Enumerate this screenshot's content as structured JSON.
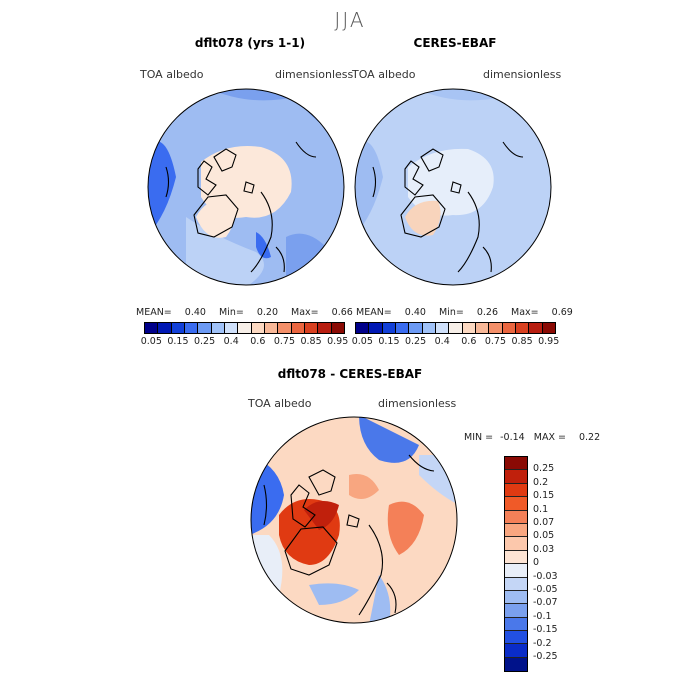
{
  "season": "JJA",
  "maps": {
    "left": {
      "title": "dflt078 (yrs 1-1)",
      "variable": "TOA albedo",
      "units": "dimensionless",
      "mean_label": "MEAN=",
      "mean": "0.40",
      "min_label": "Min=",
      "min": "0.20",
      "max_label": "Max=",
      "max": "0.66"
    },
    "right": {
      "title": "CERES-EBAF",
      "variable": "TOA albedo",
      "units": "dimensionless",
      "mean_label": "MEAN=",
      "mean": "0.40",
      "min_label": "Min=",
      "min": "0.26",
      "max_label": "Max=",
      "max": "0.69"
    },
    "diff": {
      "title": "dflt078 - CERES-EBAF",
      "variable": "TOA albedo",
      "units": "dimensionless",
      "min_label": "MIN =",
      "min": "-0.14",
      "max_label": "MAX =",
      "max": "0.22"
    }
  },
  "colorbar_top": {
    "labels": [
      "0.05",
      "0.15",
      "0.25",
      "0.4",
      "0.6",
      "0.75",
      "0.85",
      "0.95"
    ],
    "colors": [
      "#00008a",
      "#0018b4",
      "#1240d8",
      "#3a6cf0",
      "#6c9af4",
      "#a0c2f8",
      "#cfe0fa",
      "#f7efe8",
      "#fcd9c2",
      "#f8b898",
      "#f4906a",
      "#ea6640",
      "#d84020",
      "#b81e10",
      "#8a0a04"
    ]
  },
  "colorbar_diff": {
    "labels": [
      "0.25",
      "0.2",
      "0.15",
      "0.1",
      "0.07",
      "0.05",
      "0.03",
      "0",
      "-0.03",
      "-0.05",
      "-0.07",
      "-0.1",
      "-0.15",
      "-0.2",
      "-0.25"
    ],
    "colors": [
      "#8a0a04",
      "#c0200c",
      "#e03a12",
      "#f05a28",
      "#f48058",
      "#f8a680",
      "#fcc8ac",
      "#fde4d4",
      "#e8eef8",
      "#c4d6f6",
      "#9ebcf2",
      "#7aa0ee",
      "#4a78ea",
      "#2250e2",
      "#0a2cc8",
      "#00128a"
    ]
  }
}
